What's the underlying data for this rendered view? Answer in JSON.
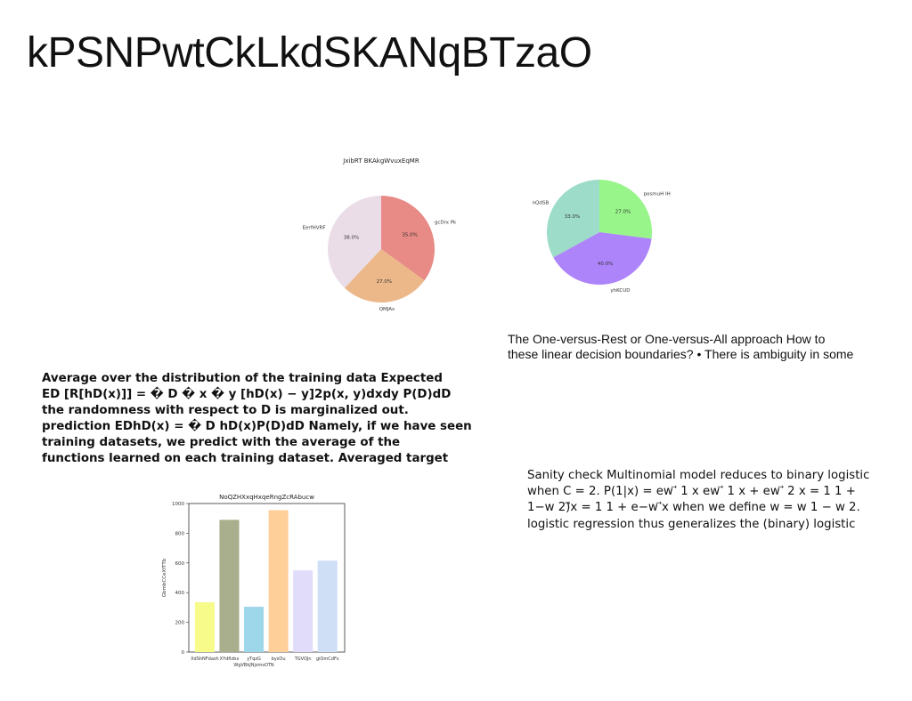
{
  "slide": {
    "title": "kPSNPwtCkLkdSKANqBTzaO",
    "text_a": [
      "The One-versus-Rest or One-versus-All approach How to",
      "these linear decision boundaries? • There is ambiguity in some"
    ],
    "text_b": [
      "Average over the distribution of the training data Expected",
      "ED [R[hD(x)]] = � D � x � y [hD(x) − y]2p(x, y)dxdy P(D)dD",
      "the randomness with respect to D is marginalized out.",
      "prediction EDhD(x) = � D hD(x)P(D)dD Namely, if we have seen",
      "training datasets, we predict with the average of the",
      "functions learned on each training dataset. Averaged target"
    ],
    "text_c": [
      "Sanity check Multinomial model reduces to binary logistic",
      "when C = 2. P(1|x) = ew ⃗ 1 x ew ⃗ 1 x + ew ⃗ 2 x = 1 1 +",
      "1−w 2)⃗x = 1 1 + e−w ⃗x when we define w = w 1 − w 2.",
      "logistic regression thus generalizes the (binary) logistic"
    ]
  },
  "chart_data": [
    {
      "type": "pie",
      "title": "JxibRT BKAkgWvuxEqMR",
      "labels": [
        "gcDrx Pk",
        "QMJAs",
        "EerfHVRF"
      ],
      "values": [
        35.0,
        27.0,
        38.0
      ],
      "pct_labels": [
        "35.0%",
        "27.0%",
        "38.0%"
      ],
      "colors": [
        "#e88a86",
        "#ecb88a",
        "#eadde8"
      ],
      "start_angle_deg": 90,
      "direction": "clockwise"
    },
    {
      "type": "pie",
      "title": "",
      "labels": [
        "posmuH IH",
        "yhKCUD",
        "nQdSB"
      ],
      "values": [
        27.0,
        40.0,
        33.0
      ],
      "pct_labels": [
        "27.0%",
        "40.0%",
        "33.0%"
      ],
      "colors": [
        "#98f58a",
        "#ad84fa",
        "#9cdcc8"
      ],
      "start_angle_deg": 90,
      "direction": "clockwise"
    },
    {
      "type": "bar",
      "title": "NoQZHXxqHxqeRngZcRAbucw",
      "xlabel": "",
      "ylabel": "GbmbCCeXfTTb",
      "categories": [
        "XdShNFdazh",
        "XYdfIzbx",
        "yTqzG\nWgVBkJNjzmsOTN",
        "bysOu",
        "TGVOJn",
        "giOmCdFs"
      ],
      "values": [
        335,
        890,
        305,
        955,
        550,
        615
      ],
      "colors": [
        "#f6fb8a",
        "#a9ae8c",
        "#9ed6ea",
        "#ffcf99",
        "#e0dcfa",
        "#cfdff6"
      ],
      "ylim": [
        0,
        1000
      ],
      "yticks": [
        0,
        200,
        400,
        600,
        800,
        1000
      ],
      "grid": false
    }
  ]
}
